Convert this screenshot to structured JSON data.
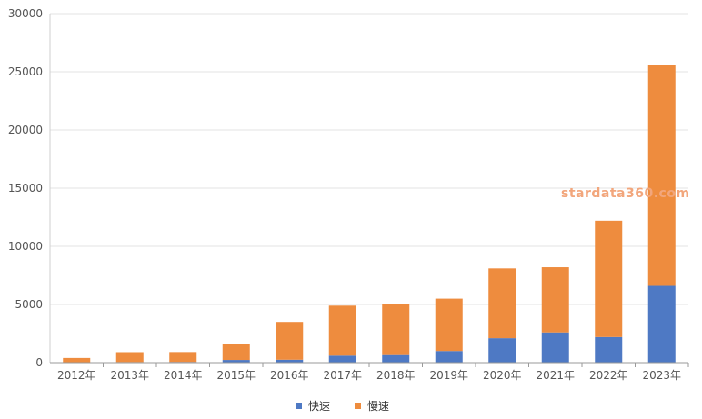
{
  "chart_data": {
    "type": "bar",
    "stacked": true,
    "categories": [
      "2012年",
      "2013年",
      "2014年",
      "2015年",
      "2016年",
      "2017年",
      "2018年",
      "2019年",
      "2020年",
      "2021年",
      "2022年",
      "2023年"
    ],
    "series": [
      {
        "name": "快速",
        "color": "#4e79c4",
        "values": [
          30,
          50,
          60,
          230,
          250,
          600,
          650,
          1000,
          2100,
          2600,
          2200,
          6600
        ]
      },
      {
        "name": "慢速",
        "color": "#ee8c3e",
        "values": [
          370,
          850,
          850,
          1400,
          3250,
          4300,
          4350,
          4500,
          6000,
          5600,
          10000,
          19000
        ]
      }
    ],
    "ylim": [
      0,
      30000
    ],
    "yticks": [
      "0",
      "5000",
      "10000",
      "15000",
      "20000",
      "25000",
      "30000"
    ],
    "grid": true,
    "legend": "bottom"
  },
  "watermark": "stardata360.com"
}
